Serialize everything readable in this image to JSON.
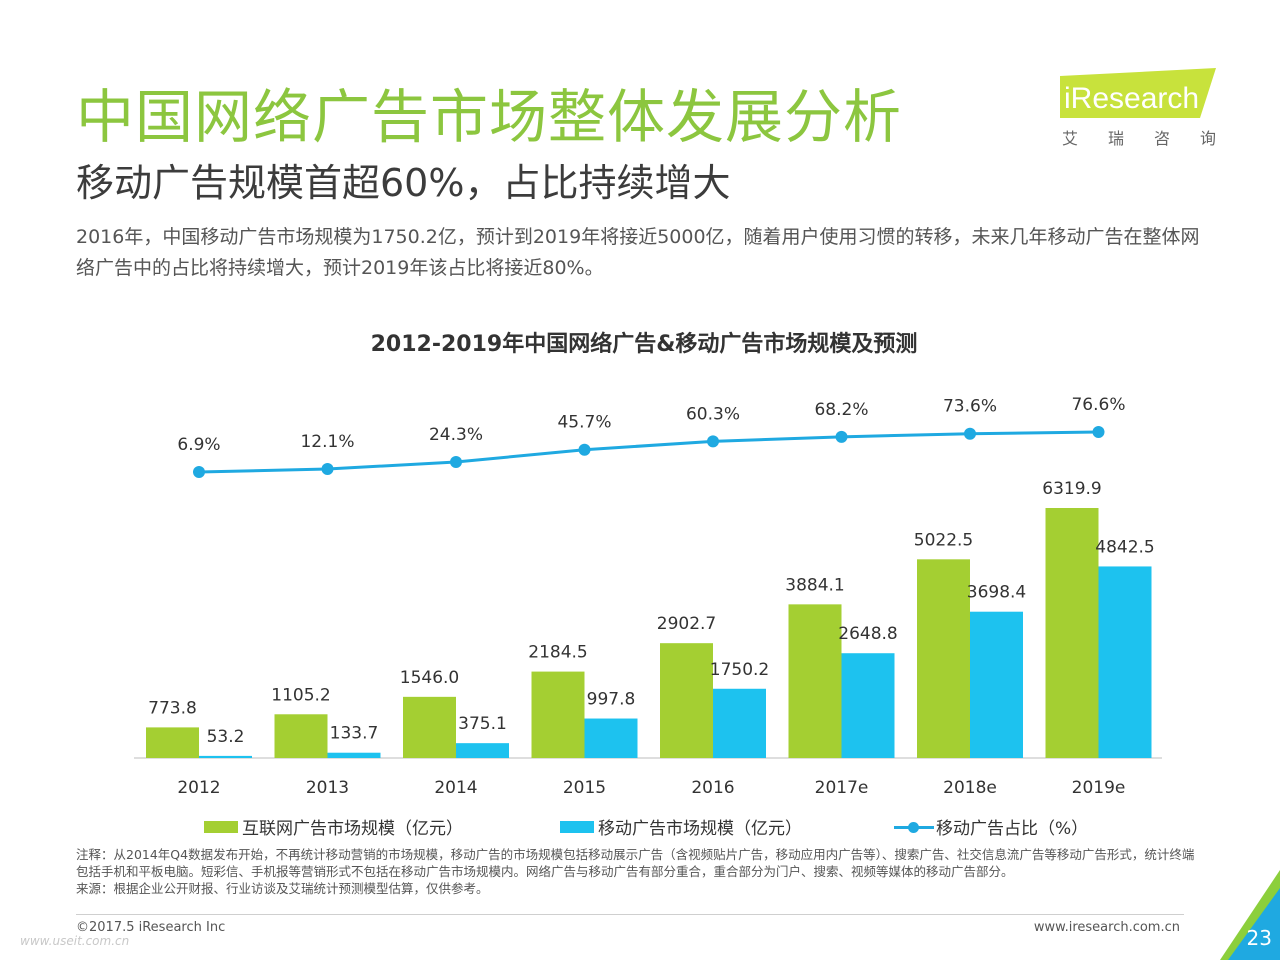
{
  "header": {
    "title": "中国网络广告市场整体发展分析",
    "subtitle": "移动广告规模首超60%，占比持续增大",
    "description": "2016年，中国移动广告市场规模为1750.2亿，预计到2019年将接近5000亿，随着用户使用习惯的转移，未来几年移动广告在整体网络广告中的占比将持续增大，预计2019年该占比将接近80%。"
  },
  "logo": {
    "brand": "iResearch",
    "cn": "艾瑞咨询"
  },
  "chart_data": {
    "type": "bar",
    "title": "2012-2019年中国网络广告&移动广告市场规模及预测",
    "categories": [
      "2012",
      "2013",
      "2014",
      "2015",
      "2016",
      "2017e",
      "2018e",
      "2019e"
    ],
    "series": [
      {
        "name": "互联网广告市场规模（亿元）",
        "type": "bar",
        "color": "#a4cf32",
        "values": [
          773.8,
          1105.2,
          1546.0,
          2184.5,
          2902.7,
          3884.1,
          5022.5,
          6319.9
        ],
        "labels": [
          "773.8",
          "1105.2",
          "1546.0",
          "2184.5",
          "2902.7",
          "3884.1",
          "5022.5",
          "6319.9"
        ]
      },
      {
        "name": "移动广告市场规模（亿元）",
        "type": "bar",
        "color": "#1dc2ef",
        "values": [
          53.2,
          133.7,
          375.1,
          997.8,
          1750.2,
          2648.8,
          3698.4,
          4842.5
        ],
        "labels": [
          "53.2",
          "133.7",
          "375.1",
          "997.8",
          "1750.2",
          "2648.8",
          "3698.4",
          "4842.5"
        ]
      },
      {
        "name": "移动广告占比（%）",
        "type": "line",
        "color": "#1fa9e1",
        "values": [
          6.9,
          12.1,
          24.3,
          45.7,
          60.3,
          68.2,
          73.6,
          76.6
        ],
        "labels": [
          "6.9%",
          "12.1%",
          "24.3%",
          "45.7%",
          "60.3%",
          "68.2%",
          "73.6%",
          "76.6%"
        ]
      }
    ],
    "legend_position": "bottom",
    "grid": false
  },
  "notes": {
    "note": "注释：从2014年Q4数据发布开始，不再统计移动营销的市场规模，移动广告的市场规模包括移动展示广告（含视频贴片广告，移动应用内广告等）、搜索广告、社交信息流广告等移动广告形式，统计终端包括手机和平板电脑。短彩信、手机报等营销形式不包括在移动广告市场规模内。网络广告与移动广告有部分重合，重合部分为门户、搜索、视频等媒体的移动广告部分。",
    "source": "来源：根据企业公开财报、行业访谈及艾瑞统计预测模型估算，仅供参考。"
  },
  "footer": {
    "copyright": "©2017.5 iResearch Inc",
    "website": "www.iresearch.com.cn",
    "page": "23",
    "watermark": "www.useit.com.cn"
  }
}
